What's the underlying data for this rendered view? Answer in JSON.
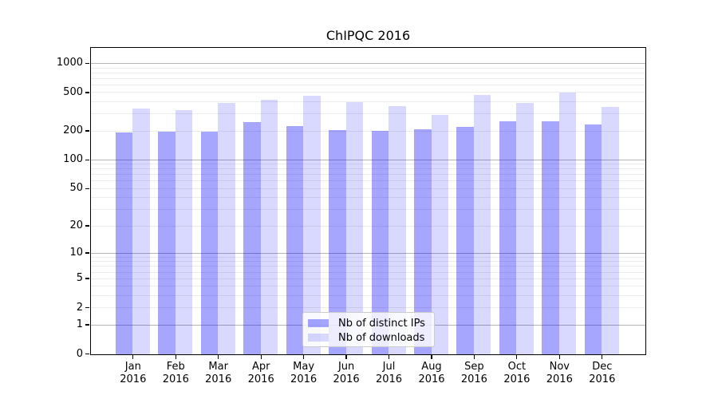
{
  "chart_data": {
    "type": "bar",
    "title": "ChIPQC 2016",
    "categories": [
      "Jan 2016",
      "Feb 2016",
      "Mar 2016",
      "Apr 2016",
      "May 2016",
      "Jun 2016",
      "Jul 2016",
      "Aug 2016",
      "Sep 2016",
      "Oct 2016",
      "Nov 2016",
      "Dec 2016"
    ],
    "series": [
      {
        "key": "ips",
        "name": "Nb of distinct IPs",
        "color": "rgba(0,0,255,0.35)",
        "values": [
          195,
          200,
          197,
          251,
          228,
          207,
          203,
          210,
          221,
          255,
          255,
          236
        ]
      },
      {
        "key": "downloads",
        "name": "Nb of downloads",
        "color": "rgba(0,0,255,0.15)",
        "values": [
          345,
          330,
          392,
          424,
          465,
          400,
          364,
          295,
          480,
          392,
          506,
          357
        ]
      }
    ],
    "xlabel": "",
    "ylabel": "",
    "yscale": "log1p",
    "ylim": [
      0,
      1490
    ],
    "y_ticks": [
      1000,
      500,
      200,
      100,
      50,
      20,
      10,
      5,
      2,
      1,
      0
    ],
    "grid": {
      "major_values": [
        1,
        10,
        100,
        1000
      ],
      "minor_values": [
        2,
        3,
        4,
        5,
        6,
        7,
        8,
        9,
        20,
        30,
        40,
        50,
        60,
        70,
        80,
        90,
        200,
        300,
        400,
        500,
        600,
        700,
        800,
        900
      ],
      "major_color": "#b5b5b5",
      "minor_color": "#ececec"
    },
    "legend": {
      "position": "inside-bottom-center",
      "labels": [
        "Nb of distinct IPs",
        "Nb of downloads"
      ]
    }
  }
}
